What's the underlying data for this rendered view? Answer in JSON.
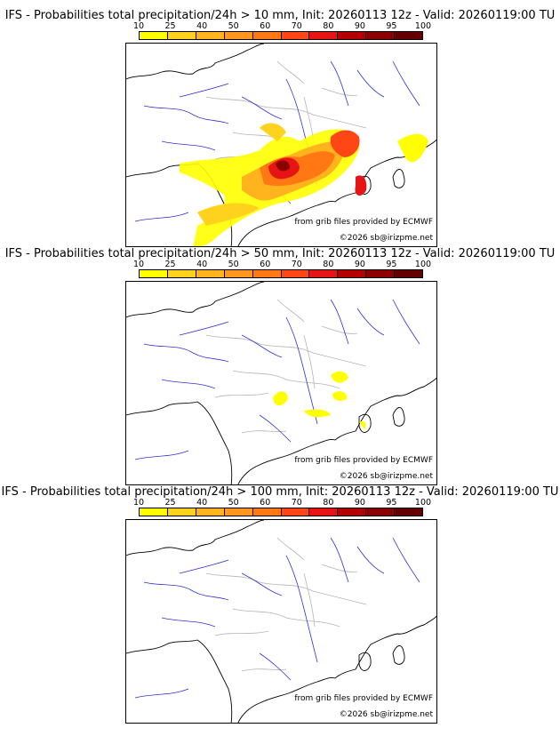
{
  "colorbar": {
    "ticks": [
      "10",
      "25",
      "40",
      "50",
      "60",
      "70",
      "80",
      "90",
      "95",
      "100"
    ],
    "colors": [
      "#ffff00",
      "#ffd21e",
      "#ffb41e",
      "#ff961e",
      "#ff7814",
      "#ff4614",
      "#e61414",
      "#b40000",
      "#8c0000",
      "#640000"
    ]
  },
  "panels": [
    {
      "title": "IFS - Probabilities total precipitation/24h > 10 mm, Init: 20260113 12z - Valid: 20260119:00 TU",
      "source": "from grib files provided by ECMWF",
      "copyright": "©2026 sb@irizpme.net"
    },
    {
      "title": "IFS - Probabilities total precipitation/24h > 50 mm, Init: 20260113 12z - Valid: 20260119:00 TU",
      "source": "from grib files provided by ECMWF",
      "copyright": "©2026 sb@irizpme.net"
    },
    {
      "title": "IFS - Probabilities total precipitation/24h > 100 mm, Init: 20260113 12z - Valid: 20260119:00 TU",
      "source": "from grib files provided by ECMWF",
      "copyright": "©2026 sb@irizpme.net"
    }
  ]
}
